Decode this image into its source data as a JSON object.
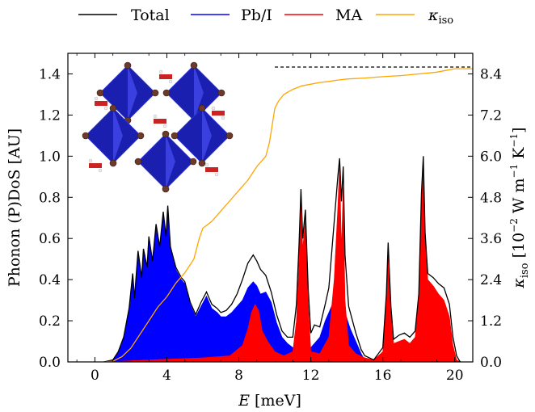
{
  "chart_data": {
    "type": "area",
    "xlabel_var": "E",
    "xlabel_unit": "[meV]",
    "ylabel": "Phonon (P)DoS [AU]",
    "y2label_var": "κ",
    "y2label_sub": "iso",
    "y2label_unit_pre": "[10",
    "y2label_unit_exp": "−2",
    "y2label_unit_mid": " W m",
    "y2label_unit_exp2": "−1",
    "y2label_unit_post": " K",
    "y2label_unit_exp3": "−1",
    "y2label_unit_end": "]",
    "xlim": [
      -1.5,
      21
    ],
    "ylim": [
      0,
      1.5
    ],
    "y2lim": [
      0,
      9
    ],
    "xticks": [
      0,
      4,
      8,
      12,
      16,
      20
    ],
    "yticks": [
      0.0,
      0.2,
      0.4,
      0.6,
      0.8,
      1.0,
      1.2,
      1.4
    ],
    "y2ticks": [
      0.0,
      1.2,
      2.4,
      3.6,
      4.8,
      6.0,
      7.2,
      8.4
    ],
    "legend": [
      {
        "name": "Total",
        "color": "#000000"
      },
      {
        "name": "Pb/I",
        "color": "#0000ff"
      },
      {
        "name": "MA",
        "color": "#ff0000"
      },
      {
        "name": "κ",
        "sub": "iso",
        "color": "#ffa500"
      }
    ],
    "legend_position": "top-outside",
    "reference_line": {
      "y2": 8.6,
      "x_start": 10,
      "style": "dashed",
      "color": "#000000"
    },
    "series": [
      {
        "name": "Pb/I",
        "style": "filled",
        "color": "#0000ff",
        "points": [
          [
            0.5,
            0
          ],
          [
            1.0,
            0.01
          ],
          [
            1.3,
            0.05
          ],
          [
            1.6,
            0.12
          ],
          [
            1.9,
            0.25
          ],
          [
            2.1,
            0.42
          ],
          [
            2.2,
            0.3
          ],
          [
            2.4,
            0.53
          ],
          [
            2.6,
            0.4
          ],
          [
            2.7,
            0.54
          ],
          [
            2.9,
            0.45
          ],
          [
            3.0,
            0.6
          ],
          [
            3.2,
            0.48
          ],
          [
            3.4,
            0.66
          ],
          [
            3.6,
            0.55
          ],
          [
            3.8,
            0.72
          ],
          [
            3.95,
            0.6
          ],
          [
            4.05,
            0.75
          ],
          [
            4.2,
            0.55
          ],
          [
            4.5,
            0.45
          ],
          [
            4.8,
            0.4
          ],
          [
            5.0,
            0.38
          ],
          [
            5.3,
            0.28
          ],
          [
            5.6,
            0.22
          ],
          [
            5.9,
            0.27
          ],
          [
            6.2,
            0.32
          ],
          [
            6.5,
            0.26
          ],
          [
            6.8,
            0.24
          ],
          [
            7.0,
            0.22
          ],
          [
            7.3,
            0.22
          ],
          [
            7.6,
            0.24
          ],
          [
            7.9,
            0.27
          ],
          [
            8.2,
            0.3
          ],
          [
            8.5,
            0.36
          ],
          [
            8.8,
            0.39
          ],
          [
            9.0,
            0.37
          ],
          [
            9.2,
            0.33
          ],
          [
            9.5,
            0.34
          ],
          [
            9.8,
            0.29
          ],
          [
            10.1,
            0.19
          ],
          [
            10.4,
            0.12
          ],
          [
            10.7,
            0.09
          ],
          [
            11.0,
            0.07
          ],
          [
            11.3,
            0.05
          ],
          [
            11.6,
            0.04
          ],
          [
            11.9,
            0.06
          ],
          [
            12.2,
            0.09
          ],
          [
            12.5,
            0.12
          ],
          [
            12.8,
            0.2
          ],
          [
            13.0,
            0.24
          ],
          [
            13.3,
            0.3
          ],
          [
            13.6,
            0.26
          ],
          [
            13.9,
            0.24
          ],
          [
            14.2,
            0.16
          ],
          [
            14.5,
            0.1
          ],
          [
            14.8,
            0.04
          ],
          [
            15.0,
            0.01
          ],
          [
            15.3,
            0
          ],
          [
            15.9,
            0
          ],
          [
            16.1,
            0.02
          ],
          [
            16.4,
            0.01
          ],
          [
            17.0,
            0.01
          ],
          [
            17.5,
            0.02
          ],
          [
            18.0,
            0.01
          ],
          [
            18.5,
            0.02
          ],
          [
            19.0,
            0.01
          ],
          [
            19.5,
            0.01
          ],
          [
            20.0,
            0.0
          ]
        ]
      },
      {
        "name": "MA",
        "style": "filled",
        "color": "#ff0000",
        "points": [
          [
            0.5,
            0
          ],
          [
            3.0,
            0.01
          ],
          [
            6.0,
            0.02
          ],
          [
            7.5,
            0.03
          ],
          [
            8.2,
            0.08
          ],
          [
            8.5,
            0.16
          ],
          [
            8.7,
            0.24
          ],
          [
            8.9,
            0.28
          ],
          [
            9.1,
            0.25
          ],
          [
            9.3,
            0.15
          ],
          [
            9.6,
            0.1
          ],
          [
            10.0,
            0.05
          ],
          [
            10.5,
            0.03
          ],
          [
            11.0,
            0.05
          ],
          [
            11.2,
            0.2
          ],
          [
            11.35,
            0.5
          ],
          [
            11.45,
            0.84
          ],
          [
            11.55,
            0.55
          ],
          [
            11.7,
            0.7
          ],
          [
            11.85,
            0.3
          ],
          [
            12.0,
            0.05
          ],
          [
            12.5,
            0.04
          ],
          [
            13.0,
            0.12
          ],
          [
            13.3,
            0.4
          ],
          [
            13.5,
            0.75
          ],
          [
            13.6,
            0.96
          ],
          [
            13.7,
            0.55
          ],
          [
            13.8,
            0.85
          ],
          [
            13.9,
            0.3
          ],
          [
            14.1,
            0.08
          ],
          [
            14.5,
            0.04
          ],
          [
            15.0,
            0.02
          ],
          [
            15.5,
            0.01
          ],
          [
            16.0,
            0.05
          ],
          [
            16.2,
            0.3
          ],
          [
            16.3,
            0.56
          ],
          [
            16.45,
            0.25
          ],
          [
            16.6,
            0.09
          ],
          [
            16.9,
            0.1
          ],
          [
            17.2,
            0.11
          ],
          [
            17.5,
            0.09
          ],
          [
            17.8,
            0.12
          ],
          [
            18.0,
            0.3
          ],
          [
            18.15,
            0.8
          ],
          [
            18.25,
            0.99
          ],
          [
            18.35,
            0.6
          ],
          [
            18.5,
            0.4
          ],
          [
            18.8,
            0.37
          ],
          [
            19.1,
            0.33
          ],
          [
            19.4,
            0.3
          ],
          [
            19.7,
            0.22
          ],
          [
            19.9,
            0.08
          ],
          [
            20.1,
            0.01
          ],
          [
            20.3,
            0.0
          ]
        ]
      },
      {
        "name": "Total",
        "style": "line",
        "color": "#000000",
        "points": [
          [
            0.5,
            0
          ],
          [
            1.0,
            0.01
          ],
          [
            1.3,
            0.05
          ],
          [
            1.6,
            0.12
          ],
          [
            1.9,
            0.26
          ],
          [
            2.1,
            0.43
          ],
          [
            2.2,
            0.31
          ],
          [
            2.4,
            0.54
          ],
          [
            2.6,
            0.41
          ],
          [
            2.7,
            0.55
          ],
          [
            2.9,
            0.46
          ],
          [
            3.0,
            0.61
          ],
          [
            3.2,
            0.49
          ],
          [
            3.4,
            0.67
          ],
          [
            3.6,
            0.56
          ],
          [
            3.8,
            0.73
          ],
          [
            3.95,
            0.61
          ],
          [
            4.05,
            0.76
          ],
          [
            4.2,
            0.56
          ],
          [
            4.5,
            0.46
          ],
          [
            4.8,
            0.41
          ],
          [
            5.0,
            0.39
          ],
          [
            5.3,
            0.29
          ],
          [
            5.6,
            0.23
          ],
          [
            5.9,
            0.29
          ],
          [
            6.2,
            0.34
          ],
          [
            6.5,
            0.28
          ],
          [
            6.8,
            0.26
          ],
          [
            7.0,
            0.24
          ],
          [
            7.3,
            0.25
          ],
          [
            7.6,
            0.28
          ],
          [
            7.9,
            0.33
          ],
          [
            8.2,
            0.4
          ],
          [
            8.5,
            0.48
          ],
          [
            8.8,
            0.52
          ],
          [
            9.0,
            0.49
          ],
          [
            9.2,
            0.45
          ],
          [
            9.5,
            0.42
          ],
          [
            9.8,
            0.34
          ],
          [
            10.1,
            0.23
          ],
          [
            10.4,
            0.15
          ],
          [
            10.7,
            0.12
          ],
          [
            11.0,
            0.12
          ],
          [
            11.2,
            0.28
          ],
          [
            11.35,
            0.58
          ],
          [
            11.45,
            0.84
          ],
          [
            11.55,
            0.6
          ],
          [
            11.7,
            0.74
          ],
          [
            11.85,
            0.36
          ],
          [
            12.0,
            0.14
          ],
          [
            12.2,
            0.18
          ],
          [
            12.5,
            0.17
          ],
          [
            12.8,
            0.28
          ],
          [
            13.0,
            0.36
          ],
          [
            13.3,
            0.68
          ],
          [
            13.5,
            0.9
          ],
          [
            13.6,
            0.99
          ],
          [
            13.7,
            0.78
          ],
          [
            13.8,
            0.95
          ],
          [
            13.9,
            0.52
          ],
          [
            14.1,
            0.27
          ],
          [
            14.5,
            0.14
          ],
          [
            14.8,
            0.06
          ],
          [
            15.0,
            0.03
          ],
          [
            15.5,
            0.01
          ],
          [
            16.0,
            0.07
          ],
          [
            16.2,
            0.33
          ],
          [
            16.3,
            0.58
          ],
          [
            16.45,
            0.27
          ],
          [
            16.6,
            0.11
          ],
          [
            16.9,
            0.13
          ],
          [
            17.2,
            0.14
          ],
          [
            17.5,
            0.12
          ],
          [
            17.8,
            0.15
          ],
          [
            18.0,
            0.33
          ],
          [
            18.15,
            0.82
          ],
          [
            18.25,
            1.0
          ],
          [
            18.35,
            0.63
          ],
          [
            18.5,
            0.43
          ],
          [
            18.8,
            0.41
          ],
          [
            19.1,
            0.38
          ],
          [
            19.4,
            0.36
          ],
          [
            19.7,
            0.28
          ],
          [
            19.9,
            0.12
          ],
          [
            20.1,
            0.03
          ],
          [
            20.3,
            0.0
          ]
        ]
      },
      {
        "name": "κ_iso",
        "axis": "right",
        "style": "line",
        "color": "#ffa500",
        "points": [
          [
            0.5,
            0
          ],
          [
            1.0,
            0.02
          ],
          [
            1.5,
            0.15
          ],
          [
            2.0,
            0.4
          ],
          [
            2.5,
            0.8
          ],
          [
            3.0,
            1.2
          ],
          [
            3.5,
            1.6
          ],
          [
            4.0,
            1.9
          ],
          [
            4.5,
            2.3
          ],
          [
            5.0,
            2.6
          ],
          [
            5.5,
            3.0
          ],
          [
            5.8,
            3.6
          ],
          [
            6.0,
            3.9
          ],
          [
            6.5,
            4.1
          ],
          [
            7.0,
            4.4
          ],
          [
            7.5,
            4.7
          ],
          [
            8.0,
            5.0
          ],
          [
            8.5,
            5.3
          ],
          [
            9.0,
            5.7
          ],
          [
            9.5,
            6.0
          ],
          [
            9.7,
            6.4
          ],
          [
            10.0,
            7.4
          ],
          [
            10.2,
            7.6
          ],
          [
            10.5,
            7.8
          ],
          [
            11.0,
            7.95
          ],
          [
            11.5,
            8.05
          ],
          [
            12.0,
            8.1
          ],
          [
            12.5,
            8.15
          ],
          [
            13.0,
            8.18
          ],
          [
            13.5,
            8.22
          ],
          [
            14.0,
            8.25
          ],
          [
            15.0,
            8.28
          ],
          [
            16.0,
            8.32
          ],
          [
            17.0,
            8.35
          ],
          [
            18.0,
            8.4
          ],
          [
            19.0,
            8.45
          ],
          [
            19.5,
            8.5
          ],
          [
            20.0,
            8.55
          ],
          [
            21.0,
            8.55
          ]
        ]
      }
    ]
  }
}
